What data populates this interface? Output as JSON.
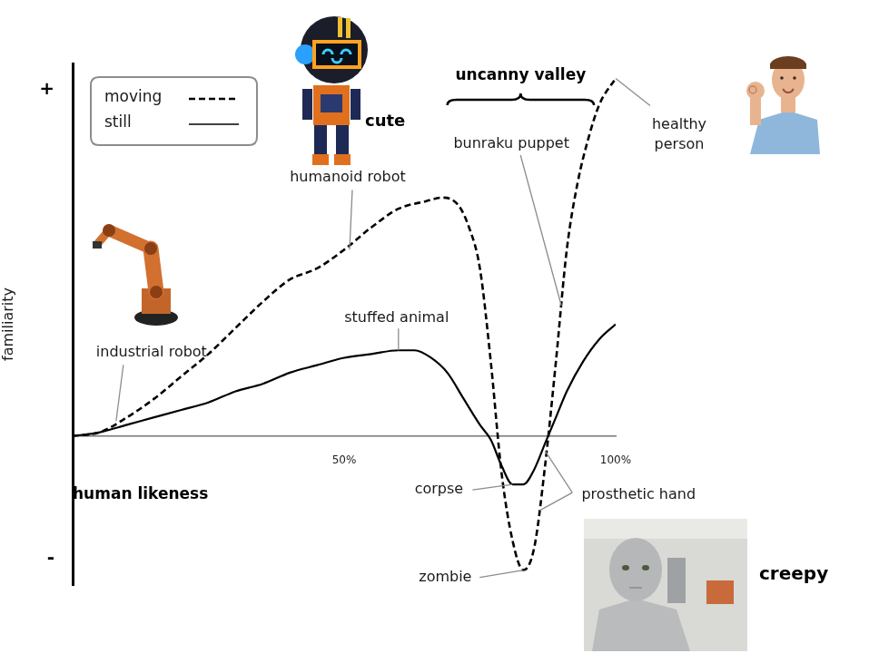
{
  "chart_data": {
    "type": "line",
    "x_label": "human likeness",
    "y_label": "familiarity",
    "xlim": [
      0,
      100
    ],
    "xticks": [
      {
        "value": 50,
        "label": "50%"
      },
      {
        "value": 100,
        "label": "100%"
      }
    ],
    "ylim": [
      -40,
      100
    ],
    "yticks": [
      {
        "value": 93,
        "label": "+"
      },
      {
        "value": -33,
        "label": "-"
      }
    ],
    "grid": false,
    "legend": "upper left",
    "series": [
      {
        "name": "moving",
        "color": "#000000",
        "line_style": "dashed",
        "x": [
          0,
          5,
          10,
          15,
          20,
          25,
          30,
          35,
          40,
          45,
          50,
          55,
          60,
          65,
          68,
          71,
          73,
          75,
          77,
          79,
          81,
          83,
          85,
          87,
          89,
          91,
          93,
          95,
          97,
          100
        ],
        "values": [
          0,
          1,
          5,
          10,
          16,
          22,
          29,
          36,
          42,
          45,
          50,
          56,
          61,
          63,
          64,
          62,
          56,
          45,
          20,
          -10,
          -28,
          -36,
          -30,
          -8,
          20,
          50,
          68,
          80,
          89,
          96
        ]
      },
      {
        "name": "still",
        "color": "#000000",
        "line_style": "solid",
        "x": [
          0,
          5,
          10,
          15,
          20,
          25,
          30,
          35,
          40,
          45,
          50,
          55,
          60,
          63,
          66,
          69,
          72,
          75,
          77,
          79,
          81,
          83,
          85,
          87,
          89,
          91,
          94,
          97,
          100
        ],
        "values": [
          0,
          1,
          3,
          5,
          7,
          9,
          12,
          14,
          17,
          19,
          21,
          22,
          23,
          23,
          21,
          17,
          10,
          3,
          -1,
          -8,
          -13,
          -13,
          -9,
          -2,
          5,
          12,
          20,
          26,
          30
        ]
      }
    ],
    "annotations": [
      {
        "text": "industrial robot",
        "points": [
          [
            8,
            4
          ]
        ]
      },
      {
        "text": "humanoid robot",
        "points": [
          [
            51,
            50
          ]
        ]
      },
      {
        "text": "stuffed animal",
        "points": [
          [
            60,
            23
          ]
        ]
      },
      {
        "text": "bunraku puppet",
        "points": [
          [
            90,
            35
          ]
        ]
      },
      {
        "text": "healthy person",
        "points": [
          [
            100,
            96
          ]
        ]
      },
      {
        "text": "corpse",
        "points": [
          [
            81,
            -13
          ]
        ]
      },
      {
        "text": "zombie",
        "points": [
          [
            83,
            -36
          ]
        ]
      },
      {
        "text": "prosthetic hand",
        "points": [
          [
            87,
            -4
          ],
          [
            86,
            -20
          ]
        ]
      },
      {
        "text": "uncanny valley",
        "span": [
          69,
          96
        ]
      }
    ],
    "image_labels": [
      "cute",
      "creepy"
    ]
  }
}
